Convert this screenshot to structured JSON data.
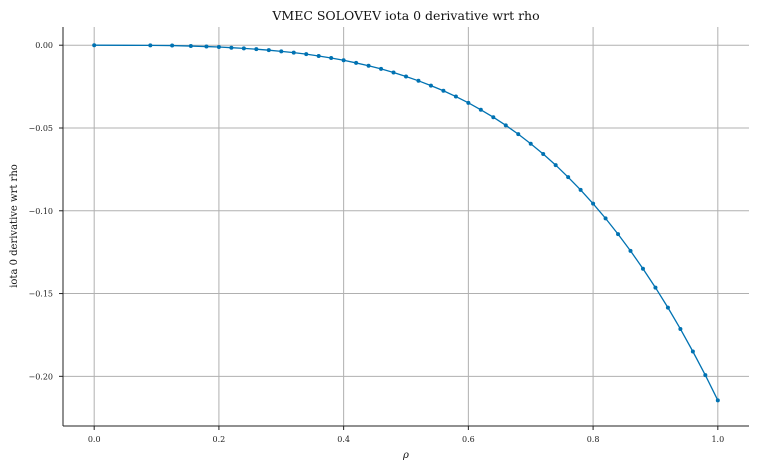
{
  "chart_data": {
    "type": "line",
    "title": "VMEC SOLOVEV iota 0 derivative wrt rho",
    "xlabel": "ρ",
    "ylabel": "iota 0 derivative wrt rho",
    "xlim": [
      -0.05,
      1.05
    ],
    "ylim": [
      -0.23,
      0.011
    ],
    "xticks": [
      0.0,
      0.2,
      0.4,
      0.6,
      0.8,
      1.0
    ],
    "xtick_labels": [
      "0.0",
      "0.2",
      "0.4",
      "0.6",
      "0.8",
      "1.0"
    ],
    "yticks": [
      0.0,
      -0.05,
      -0.1,
      -0.15,
      -0.2
    ],
    "ytick_labels": [
      "0.00",
      "−0.05",
      "−0.10",
      "−0.15",
      "−0.20"
    ],
    "grid": true,
    "color": "#0072b2",
    "series": [
      {
        "x": [
          0,
          0.09,
          0.125,
          0.155,
          0.18,
          0.2,
          0.22,
          0.24,
          0.26,
          0.28,
          0.3,
          0.32,
          0.34,
          0.36,
          0.38,
          0.4,
          0.42,
          0.44,
          0.46,
          0.48,
          0.5,
          0.52,
          0.54,
          0.56,
          0.58,
          0.6,
          0.62,
          0.64,
          0.66,
          0.68,
          0.7,
          0.72,
          0.74,
          0.76,
          0.78,
          0.8,
          0.82,
          0.84,
          0.86,
          0.88,
          0.9,
          0.92,
          0.94,
          0.96,
          0.98,
          1.0
        ],
        "y": [
          0.0,
          -0.0001,
          -0.0002,
          -0.0005,
          -0.0008,
          -0.0011,
          -0.0015,
          -0.0019,
          -0.0024,
          -0.003,
          -0.0037,
          -0.0045,
          -0.0054,
          -0.0065,
          -0.0077,
          -0.0091,
          -0.0107,
          -0.0124,
          -0.0143,
          -0.0165,
          -0.0189,
          -0.0215,
          -0.0244,
          -0.0275,
          -0.031,
          -0.0348,
          -0.039,
          -0.0435,
          -0.0484,
          -0.0537,
          -0.0595,
          -0.0657,
          -0.0724,
          -0.0797,
          -0.0874,
          -0.0957,
          -0.1046,
          -0.1141,
          -0.1242,
          -0.135,
          -0.1464,
          -0.1585,
          -0.1714,
          -0.185,
          -0.1993,
          -0.2145
        ]
      }
    ]
  }
}
